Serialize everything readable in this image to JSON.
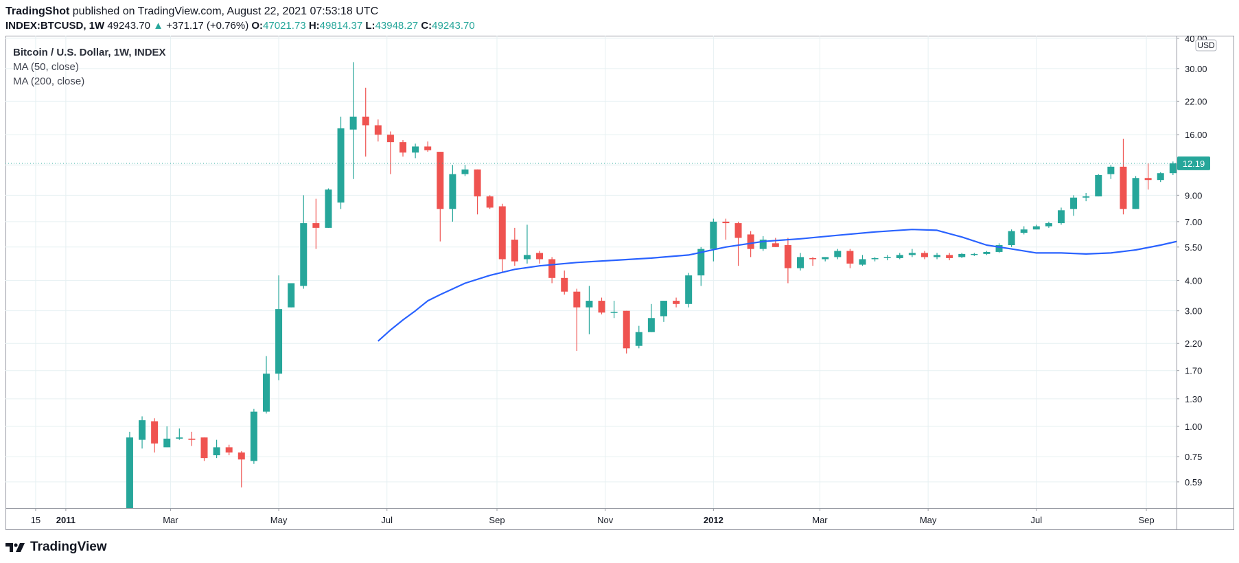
{
  "header": {
    "publisher": "TradingShot",
    "published_text": "published on TradingView.com, August 22, 2021 07:53:18 UTC"
  },
  "ticker": {
    "symbol": "INDEX:BTCUSD, 1W",
    "last": "49243.70",
    "change": "+371.17 (+0.76%)",
    "o_label": "O:",
    "o": "47021.73",
    "h_label": "H:",
    "h": "49814.37",
    "l_label": "L:",
    "l": "43948.27",
    "c_label": "C:",
    "c": "49243.70"
  },
  "legend": {
    "title": "Bitcoin / U.S. Dollar, 1W, INDEX",
    "ma50": "MA (50, close)",
    "ma200": "MA (200, close)"
  },
  "brand": {
    "name": "TradingView"
  },
  "colors": {
    "up": "#26a69a",
    "down": "#ef5350",
    "ma": "#2962ff",
    "grid": "#e6f0f2",
    "axis_text": "#131722"
  },
  "chart_data": {
    "type": "candlestick",
    "title": "Bitcoin / U.S. Dollar, 1W, INDEX",
    "y_scale": "log",
    "currency_label": "USD",
    "ylim": [
      0.46,
      41
    ],
    "y_ticks": [
      "0.59",
      "0.75",
      "1.00",
      "1.30",
      "1.70",
      "2.20",
      "3.00",
      "4.00",
      "5.50",
      "7.00",
      "9.00",
      "12.00",
      "16.00",
      "22.00",
      "30.00",
      "40.00"
    ],
    "x_ticks": [
      {
        "label": "15",
        "date": "2010-12-15",
        "bold": false
      },
      {
        "label": "2011",
        "date": "2011-01-01",
        "bold": true
      },
      {
        "label": "Mar",
        "date": "2011-03-01",
        "bold": false
      },
      {
        "label": "May",
        "date": "2011-05-01",
        "bold": false
      },
      {
        "label": "Jul",
        "date": "2011-07-01",
        "bold": false
      },
      {
        "label": "Sep",
        "date": "2011-09-01",
        "bold": false
      },
      {
        "label": "Nov",
        "date": "2011-11-01",
        "bold": false
      },
      {
        "label": "2012",
        "date": "2012-01-01",
        "bold": true
      },
      {
        "label": "Mar",
        "date": "2012-03-01",
        "bold": false
      },
      {
        "label": "May",
        "date": "2012-05-01",
        "bold": false
      },
      {
        "label": "Jul",
        "date": "2012-07-01",
        "bold": false
      },
      {
        "label": "Sep",
        "date": "2012-09-01",
        "bold": false
      }
    ],
    "x_range": [
      "2010-11-28",
      "2012-09-18"
    ],
    "last_price_label": "12.19",
    "candles": [
      {
        "date": "2011-02-06",
        "o": 0.38,
        "h": 0.95,
        "l": 0.38,
        "c": 0.9
      },
      {
        "date": "2011-02-13",
        "o": 0.88,
        "h": 1.1,
        "l": 0.81,
        "c": 1.06
      },
      {
        "date": "2011-02-20",
        "o": 1.05,
        "h": 1.08,
        "l": 0.78,
        "c": 0.85
      },
      {
        "date": "2011-02-27",
        "o": 0.82,
        "h": 1.0,
        "l": 0.82,
        "c": 0.89
      },
      {
        "date": "2011-03-06",
        "o": 0.89,
        "h": 0.98,
        "l": 0.88,
        "c": 0.9
      },
      {
        "date": "2011-03-13",
        "o": 0.89,
        "h": 0.95,
        "l": 0.83,
        "c": 0.88
      },
      {
        "date": "2011-03-20",
        "o": 0.9,
        "h": 0.9,
        "l": 0.72,
        "c": 0.74
      },
      {
        "date": "2011-03-27",
        "o": 0.76,
        "h": 0.88,
        "l": 0.74,
        "c": 0.82
      },
      {
        "date": "2011-04-03",
        "o": 0.82,
        "h": 0.84,
        "l": 0.76,
        "c": 0.78
      },
      {
        "date": "2011-04-10",
        "o": 0.78,
        "h": 0.79,
        "l": 0.56,
        "c": 0.73
      },
      {
        "date": "2011-04-17",
        "o": 0.72,
        "h": 1.18,
        "l": 0.7,
        "c": 1.15
      },
      {
        "date": "2011-04-24",
        "o": 1.15,
        "h": 1.95,
        "l": 1.13,
        "c": 1.65
      },
      {
        "date": "2011-05-01",
        "o": 1.65,
        "h": 4.2,
        "l": 1.55,
        "c": 3.05
      },
      {
        "date": "2011-05-08",
        "o": 3.1,
        "h": 3.9,
        "l": 3.1,
        "c": 3.9
      },
      {
        "date": "2011-05-15",
        "o": 3.8,
        "h": 9.0,
        "l": 3.7,
        "c": 6.9
      },
      {
        "date": "2011-05-22",
        "o": 6.9,
        "h": 8.7,
        "l": 5.4,
        "c": 6.6
      },
      {
        "date": "2011-05-29",
        "o": 6.6,
        "h": 9.6,
        "l": 6.6,
        "c": 9.5
      },
      {
        "date": "2011-06-05",
        "o": 8.4,
        "h": 19.0,
        "l": 7.9,
        "c": 17.0
      },
      {
        "date": "2011-06-12",
        "o": 16.8,
        "h": 31.9,
        "l": 10.5,
        "c": 19.0
      },
      {
        "date": "2011-06-19",
        "o": 19.0,
        "h": 25.0,
        "l": 13.0,
        "c": 17.5
      },
      {
        "date": "2011-06-26",
        "o": 17.5,
        "h": 18.5,
        "l": 15.0,
        "c": 16.0
      },
      {
        "date": "2011-07-03",
        "o": 16.0,
        "h": 16.5,
        "l": 11.0,
        "c": 14.9
      },
      {
        "date": "2011-07-10",
        "o": 14.9,
        "h": 15.2,
        "l": 13.0,
        "c": 13.5
      },
      {
        "date": "2011-07-17",
        "o": 13.5,
        "h": 14.7,
        "l": 12.8,
        "c": 14.3
      },
      {
        "date": "2011-07-24",
        "o": 14.3,
        "h": 15.0,
        "l": 13.6,
        "c": 13.8
      },
      {
        "date": "2011-07-31",
        "o": 13.6,
        "h": 13.6,
        "l": 5.8,
        "c": 7.9
      },
      {
        "date": "2011-08-07",
        "o": 7.9,
        "h": 12.0,
        "l": 7.0,
        "c": 11.0
      },
      {
        "date": "2011-08-14",
        "o": 11.0,
        "h": 12.0,
        "l": 10.8,
        "c": 11.5
      },
      {
        "date": "2011-08-21",
        "o": 11.5,
        "h": 11.5,
        "l": 7.5,
        "c": 8.9
      },
      {
        "date": "2011-08-28",
        "o": 8.9,
        "h": 9.0,
        "l": 7.9,
        "c": 8.0
      },
      {
        "date": "2011-09-04",
        "o": 8.1,
        "h": 8.3,
        "l": 4.3,
        "c": 4.9
      },
      {
        "date": "2011-09-11",
        "o": 5.9,
        "h": 6.6,
        "l": 4.6,
        "c": 4.8
      },
      {
        "date": "2011-09-18",
        "o": 4.9,
        "h": 6.8,
        "l": 4.7,
        "c": 5.1
      },
      {
        "date": "2011-09-25",
        "o": 5.2,
        "h": 5.3,
        "l": 4.7,
        "c": 4.9
      },
      {
        "date": "2011-10-02",
        "o": 4.9,
        "h": 5.0,
        "l": 3.9,
        "c": 4.1
      },
      {
        "date": "2011-10-09",
        "o": 4.1,
        "h": 4.4,
        "l": 3.5,
        "c": 3.6
      },
      {
        "date": "2011-10-16",
        "o": 3.6,
        "h": 3.7,
        "l": 2.05,
        "c": 3.1
      },
      {
        "date": "2011-10-23",
        "o": 3.1,
        "h": 3.8,
        "l": 2.4,
        "c": 3.3
      },
      {
        "date": "2011-10-30",
        "o": 3.3,
        "h": 3.4,
        "l": 2.9,
        "c": 2.95
      },
      {
        "date": "2011-11-06",
        "o": 2.95,
        "h": 3.3,
        "l": 2.8,
        "c": 2.97
      },
      {
        "date": "2011-11-13",
        "o": 3.0,
        "h": 3.0,
        "l": 2.0,
        "c": 2.1
      },
      {
        "date": "2011-11-20",
        "o": 2.15,
        "h": 2.6,
        "l": 2.1,
        "c": 2.45
      },
      {
        "date": "2011-11-27",
        "o": 2.45,
        "h": 3.2,
        "l": 2.45,
        "c": 2.8
      },
      {
        "date": "2011-12-04",
        "o": 2.85,
        "h": 3.3,
        "l": 2.7,
        "c": 3.3
      },
      {
        "date": "2011-12-11",
        "o": 3.3,
        "h": 3.4,
        "l": 3.1,
        "c": 3.2
      },
      {
        "date": "2011-12-18",
        "o": 3.2,
        "h": 4.3,
        "l": 3.1,
        "c": 4.2
      },
      {
        "date": "2011-12-25",
        "o": 4.2,
        "h": 5.5,
        "l": 3.8,
        "c": 5.4
      },
      {
        "date": "2012-01-01",
        "o": 5.4,
        "h": 7.2,
        "l": 4.8,
        "c": 7.0
      },
      {
        "date": "2012-01-08",
        "o": 7.0,
        "h": 7.2,
        "l": 5.9,
        "c": 6.9
      },
      {
        "date": "2012-01-15",
        "o": 6.9,
        "h": 7.0,
        "l": 4.6,
        "c": 6.0
      },
      {
        "date": "2012-01-22",
        "o": 6.2,
        "h": 6.4,
        "l": 5.0,
        "c": 5.4
      },
      {
        "date": "2012-01-29",
        "o": 5.4,
        "h": 6.1,
        "l": 5.3,
        "c": 5.9
      },
      {
        "date": "2012-02-05",
        "o": 5.7,
        "h": 6.0,
        "l": 5.5,
        "c": 5.5
      },
      {
        "date": "2012-02-12",
        "o": 5.6,
        "h": 6.0,
        "l": 3.9,
        "c": 4.5
      },
      {
        "date": "2012-02-19",
        "o": 4.5,
        "h": 5.2,
        "l": 4.4,
        "c": 5.0
      },
      {
        "date": "2012-02-26",
        "o": 4.95,
        "h": 5.0,
        "l": 4.6,
        "c": 4.9
      },
      {
        "date": "2012-03-04",
        "o": 4.9,
        "h": 5.0,
        "l": 4.8,
        "c": 5.0
      },
      {
        "date": "2012-03-11",
        "o": 5.0,
        "h": 5.4,
        "l": 4.9,
        "c": 5.3
      },
      {
        "date": "2012-03-18",
        "o": 5.3,
        "h": 5.4,
        "l": 4.5,
        "c": 4.7
      },
      {
        "date": "2012-03-25",
        "o": 4.65,
        "h": 5.1,
        "l": 4.6,
        "c": 4.9
      },
      {
        "date": "2012-04-01",
        "o": 4.9,
        "h": 5.0,
        "l": 4.8,
        "c": 4.95
      },
      {
        "date": "2012-04-08",
        "o": 4.95,
        "h": 5.1,
        "l": 4.85,
        "c": 5.0
      },
      {
        "date": "2012-04-15",
        "o": 4.95,
        "h": 5.2,
        "l": 4.9,
        "c": 5.1
      },
      {
        "date": "2012-04-22",
        "o": 5.1,
        "h": 5.4,
        "l": 5.0,
        "c": 5.2
      },
      {
        "date": "2012-04-29",
        "o": 5.2,
        "h": 5.3,
        "l": 4.9,
        "c": 5.0
      },
      {
        "date": "2012-05-06",
        "o": 5.0,
        "h": 5.2,
        "l": 4.9,
        "c": 5.1
      },
      {
        "date": "2012-05-13",
        "o": 5.1,
        "h": 5.2,
        "l": 4.85,
        "c": 4.95
      },
      {
        "date": "2012-05-20",
        "o": 5.0,
        "h": 5.2,
        "l": 4.95,
        "c": 5.15
      },
      {
        "date": "2012-05-27",
        "o": 5.1,
        "h": 5.2,
        "l": 5.05,
        "c": 5.15
      },
      {
        "date": "2012-06-03",
        "o": 5.15,
        "h": 5.3,
        "l": 5.1,
        "c": 5.25
      },
      {
        "date": "2012-06-10",
        "o": 5.25,
        "h": 5.7,
        "l": 5.2,
        "c": 5.6
      },
      {
        "date": "2012-06-17",
        "o": 5.6,
        "h": 6.5,
        "l": 5.5,
        "c": 6.4
      },
      {
        "date": "2012-06-24",
        "o": 6.3,
        "h": 6.7,
        "l": 6.2,
        "c": 6.5
      },
      {
        "date": "2012-07-01",
        "o": 6.5,
        "h": 6.8,
        "l": 6.5,
        "c": 6.7
      },
      {
        "date": "2012-07-08",
        "o": 6.7,
        "h": 7.0,
        "l": 6.6,
        "c": 6.9
      },
      {
        "date": "2012-07-15",
        "o": 6.9,
        "h": 8.0,
        "l": 6.8,
        "c": 7.8
      },
      {
        "date": "2012-07-22",
        "o": 7.9,
        "h": 9.0,
        "l": 7.4,
        "c": 8.8
      },
      {
        "date": "2012-07-29",
        "o": 8.8,
        "h": 9.2,
        "l": 8.5,
        "c": 8.9
      },
      {
        "date": "2012-08-05",
        "o": 8.9,
        "h": 11.0,
        "l": 8.9,
        "c": 10.9
      },
      {
        "date": "2012-08-12",
        "o": 11.0,
        "h": 12.0,
        "l": 10.5,
        "c": 11.8
      },
      {
        "date": "2012-08-19",
        "o": 11.8,
        "h": 15.4,
        "l": 7.5,
        "c": 7.9
      },
      {
        "date": "2012-08-26",
        "o": 7.9,
        "h": 10.8,
        "l": 7.9,
        "c": 10.6
      },
      {
        "date": "2012-09-02",
        "o": 10.6,
        "h": 12.2,
        "l": 9.5,
        "c": 10.4
      },
      {
        "date": "2012-09-09",
        "o": 10.4,
        "h": 11.2,
        "l": 10.2,
        "c": 11.1
      },
      {
        "date": "2012-09-16",
        "o": 11.1,
        "h": 12.4,
        "l": 10.9,
        "c": 12.19
      }
    ],
    "ma_series": [
      {
        "name": "MA (50, close)",
        "points": [
          {
            "date": "2011-06-26",
            "v": 2.25
          },
          {
            "date": "2011-07-03",
            "v": 2.5
          },
          {
            "date": "2011-07-10",
            "v": 2.75
          },
          {
            "date": "2011-07-17",
            "v": 3.0
          },
          {
            "date": "2011-07-24",
            "v": 3.3
          },
          {
            "date": "2011-07-31",
            "v": 3.5
          },
          {
            "date": "2011-08-14",
            "v": 3.9
          },
          {
            "date": "2011-08-28",
            "v": 4.2
          },
          {
            "date": "2011-09-11",
            "v": 4.45
          },
          {
            "date": "2011-09-25",
            "v": 4.6
          },
          {
            "date": "2011-10-16",
            "v": 4.75
          },
          {
            "date": "2011-11-06",
            "v": 4.85
          },
          {
            "date": "2011-11-27",
            "v": 4.95
          },
          {
            "date": "2011-12-18",
            "v": 5.1
          },
          {
            "date": "2012-01-08",
            "v": 5.5
          },
          {
            "date": "2012-01-29",
            "v": 5.8
          },
          {
            "date": "2012-02-19",
            "v": 5.95
          },
          {
            "date": "2012-03-11",
            "v": 6.15
          },
          {
            "date": "2012-04-01",
            "v": 6.35
          },
          {
            "date": "2012-04-22",
            "v": 6.5
          },
          {
            "date": "2012-05-06",
            "v": 6.45
          },
          {
            "date": "2012-05-20",
            "v": 6.05
          },
          {
            "date": "2012-06-03",
            "v": 5.6
          },
          {
            "date": "2012-06-17",
            "v": 5.4
          },
          {
            "date": "2012-07-01",
            "v": 5.2
          },
          {
            "date": "2012-07-15",
            "v": 5.2
          },
          {
            "date": "2012-07-29",
            "v": 5.15
          },
          {
            "date": "2012-08-12",
            "v": 5.2
          },
          {
            "date": "2012-08-26",
            "v": 5.35
          },
          {
            "date": "2012-09-09",
            "v": 5.6
          },
          {
            "date": "2012-09-18",
            "v": 5.8
          }
        ]
      }
    ]
  }
}
